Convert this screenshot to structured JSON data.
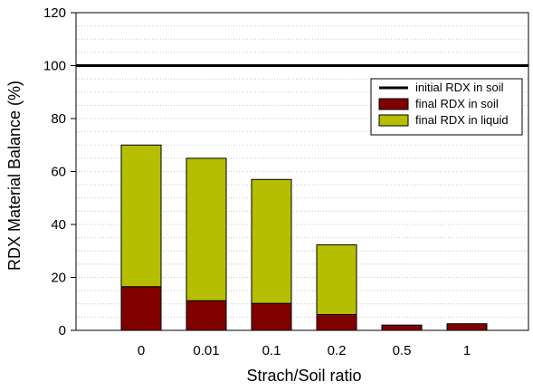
{
  "chart_data": {
    "type": "bar",
    "stacked": true,
    "categories": [
      "0",
      "0.01",
      "0.1",
      "0.2",
      "0.5",
      "1"
    ],
    "series": [
      {
        "name": "final RDX in soil",
        "color": "#800000",
        "values": [
          16.5,
          11.2,
          10.2,
          6.0,
          2.0,
          2.5
        ]
      },
      {
        "name": "final RDX in liquid",
        "color": "#B5BE00",
        "values": [
          53.5,
          53.8,
          46.8,
          26.3,
          0,
          0
        ]
      }
    ],
    "reference_lines": [
      {
        "name": "initial RDX in soil",
        "y": 100,
        "color": "#000000"
      }
    ],
    "xlabel": "Strach/Soil ratio",
    "ylabel": "RDX Material Balance (%)",
    "ylim": [
      0,
      120
    ],
    "yticks": [
      "0",
      "20",
      "40",
      "60",
      "80",
      "100",
      "120"
    ],
    "grid": "minor horizontal dotted",
    "legend": {
      "position": "top-right",
      "entries": [
        "initial RDX in soil",
        "final RDX in soil",
        "final RDX in liquid"
      ]
    }
  }
}
